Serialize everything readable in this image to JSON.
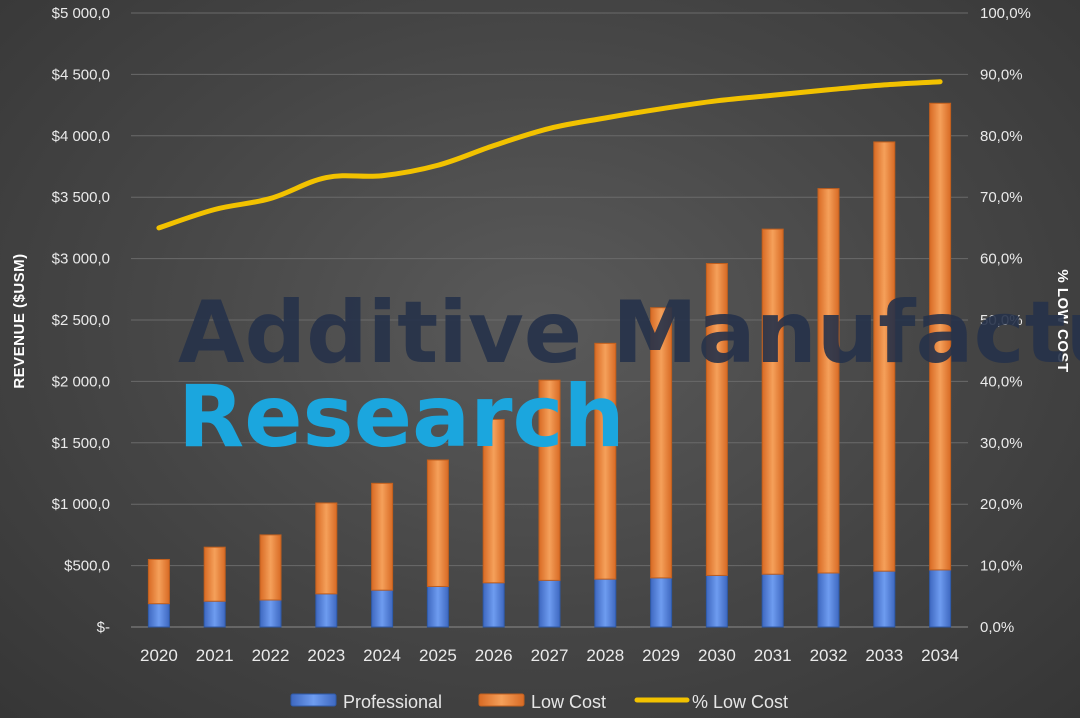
{
  "chart_data": {
    "type": "bar",
    "stacked": true,
    "categories": [
      "2020",
      "2021",
      "2022",
      "2023",
      "2024",
      "2025",
      "2026",
      "2027",
      "2028",
      "2029",
      "2030",
      "2031",
      "2032",
      "2033",
      "2034"
    ],
    "series": [
      {
        "name": "Professional",
        "axis": "left",
        "color": "#4f7fd8",
        "values": [
          190,
          210,
          220,
          270,
          300,
          330,
          360,
          380,
          390,
          400,
          420,
          430,
          440,
          455,
          465
        ]
      },
      {
        "name": "Low Cost",
        "axis": "left",
        "color": "#ed7d31",
        "values": [
          360,
          440,
          530,
          740,
          870,
          1030,
          1330,
          1630,
          1920,
          2200,
          2540,
          2810,
          3130,
          3495,
          3800
        ]
      },
      {
        "name": "% Low Cost",
        "axis": "right",
        "type": "line",
        "color": "#f2c200",
        "values": [
          65.0,
          68.0,
          69.8,
          73.2,
          73.5,
          75.2,
          78.4,
          81.2,
          82.9,
          84.4,
          85.7,
          86.6,
          87.5,
          88.3,
          88.8
        ]
      }
    ],
    "ylabel": "REVENUE ($USM)",
    "y2label": "% LOW COST",
    "ylim": [
      0,
      5000
    ],
    "y2lim": [
      0,
      100
    ],
    "yticks": [
      "$-",
      "$500,0",
      "$1 000,0",
      "$1 500,0",
      "$2 000,0",
      "$2 500,0",
      "$3 000,0",
      "$3 500,0",
      "$4 000,0",
      "$4 500,0",
      "$5 000,0"
    ],
    "y2ticks": [
      "0,0%",
      "10,0%",
      "20,0%",
      "30,0%",
      "40,0%",
      "50,0%",
      "60,0%",
      "70,0%",
      "80,0%",
      "90,0%",
      "100,0%"
    ],
    "legend_position": "bottom",
    "grid": true
  },
  "watermark": {
    "line1": "Additive Manufacturing",
    "line2": "Research"
  }
}
